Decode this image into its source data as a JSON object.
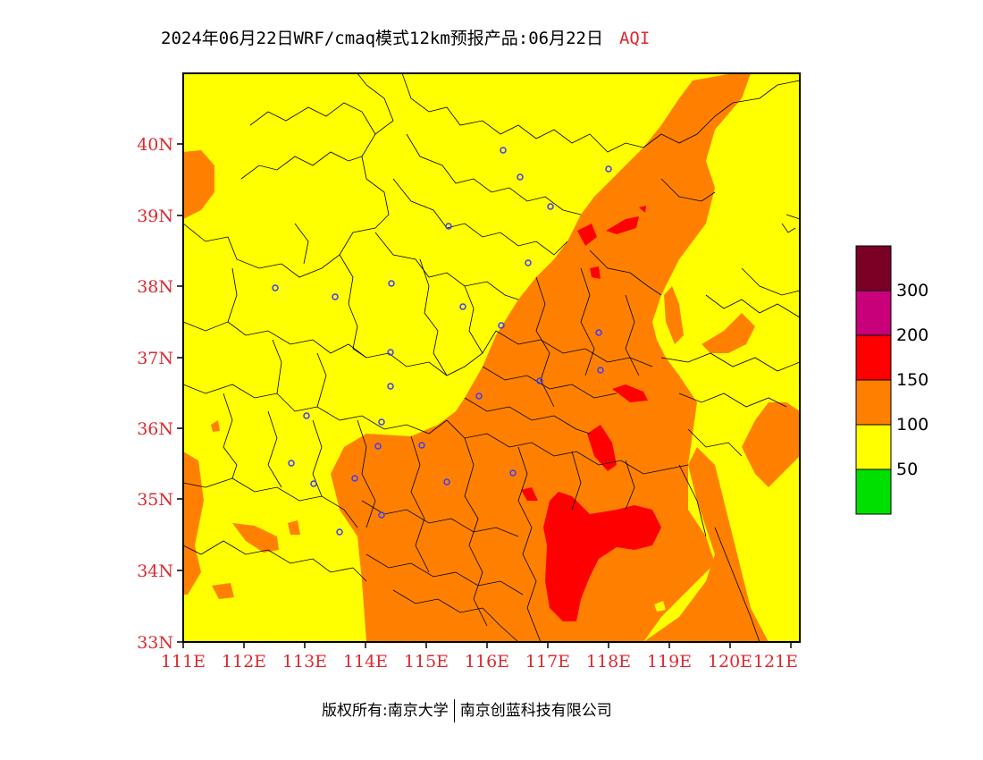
{
  "title": {
    "main": "2024年06月22日WRF/cmaq模式12km预报产品:06月22日",
    "variable": "AQI"
  },
  "axes": {
    "lat_labels": [
      "33N",
      "34N",
      "35N",
      "36N",
      "37N",
      "38N",
      "39N",
      "40N"
    ],
    "lon_labels": [
      "111E",
      "112E",
      "113E",
      "114E",
      "115E",
      "116E",
      "117E",
      "118E",
      "119E",
      "120E",
      "121E"
    ],
    "label_color": "#e0282f"
  },
  "legend": {
    "labels": [
      "300",
      "200",
      "150",
      "100",
      "50"
    ],
    "colors": [
      "#7a0025",
      "#c8007a",
      "#ff0000",
      "#ff8000",
      "#ffff00",
      "#00e000"
    ]
  },
  "credit": {
    "left": "版权所有:南京大学",
    "right": "南京创蓝科技有限公司"
  },
  "colors": {
    "good": "#00e000",
    "moderate": "#ffff00",
    "usg": "#ff8000",
    "unhealthy": "#ff0000",
    "very_unhealthy": "#c8007a",
    "hazardous": "#7a0025",
    "city_marker": "#3c3cff"
  }
}
